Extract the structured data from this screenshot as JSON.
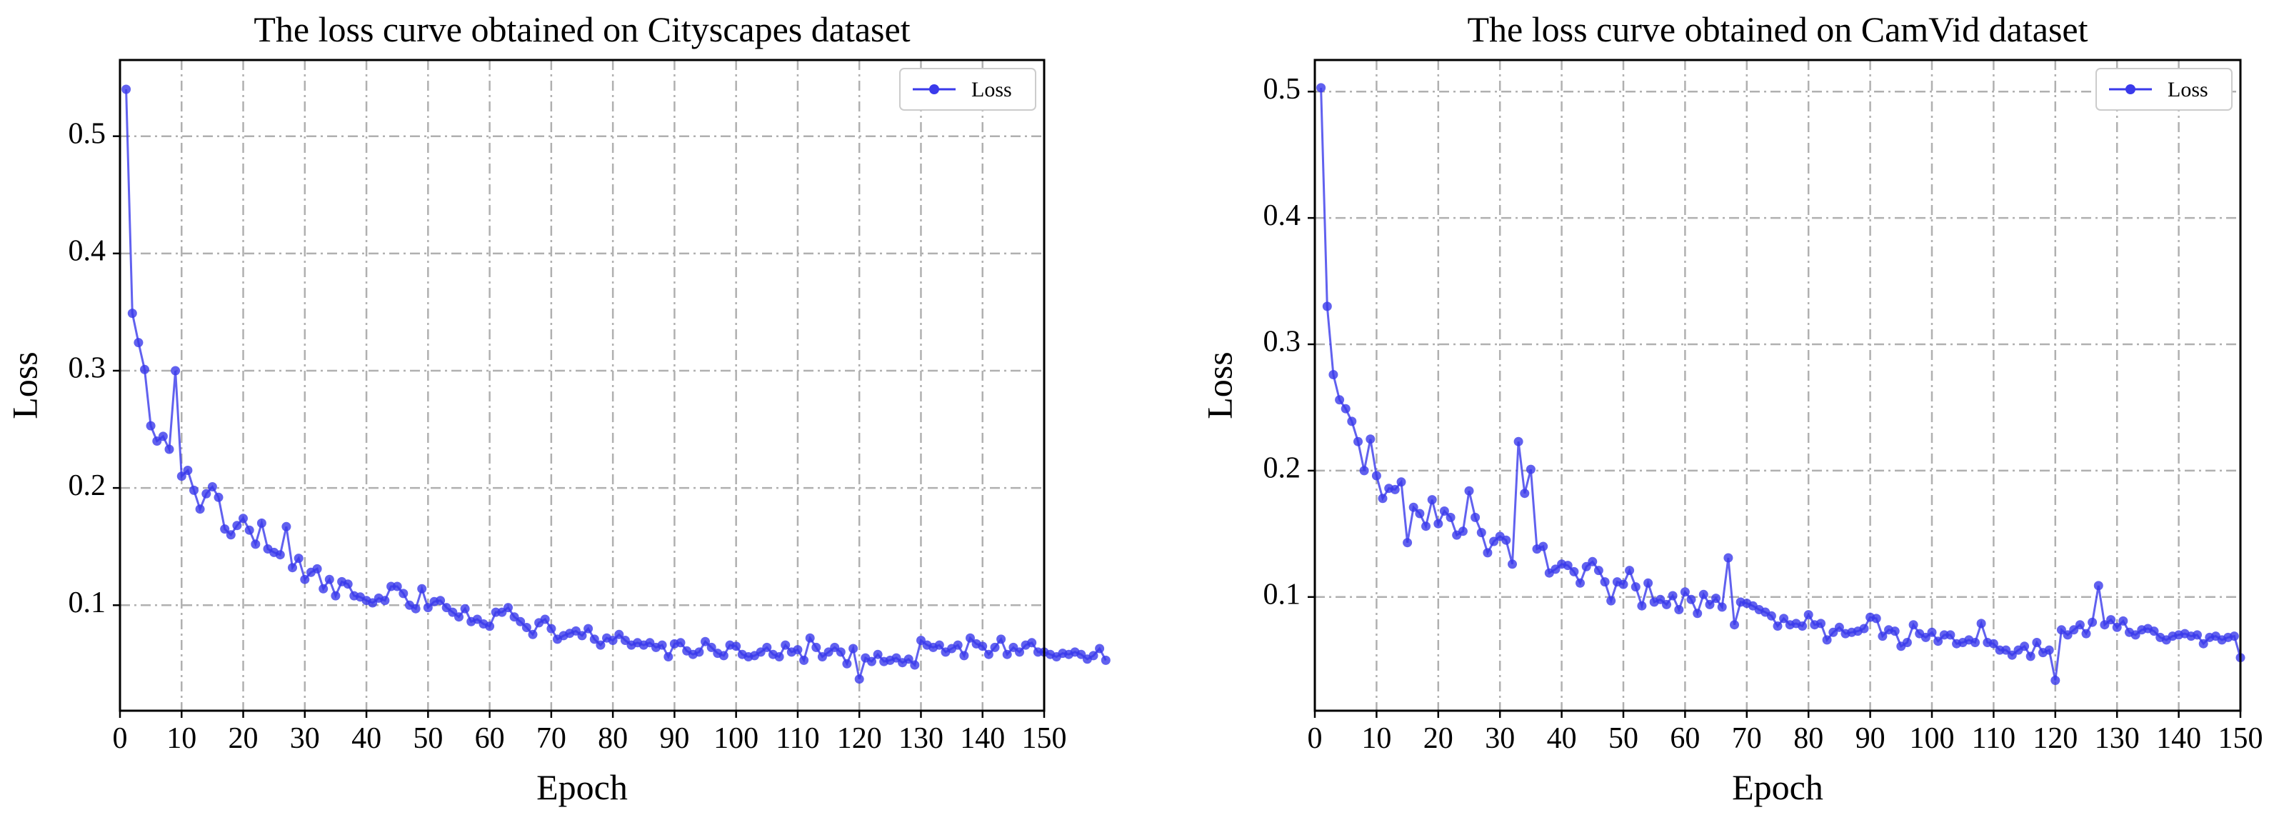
{
  "chart_data": [
    {
      "type": "line",
      "title": "The loss curve obtained on Cityscapes dataset",
      "xlabel": "Epoch",
      "ylabel": "Loss",
      "xlim": [
        0,
        150
      ],
      "ylim": [
        0.01,
        0.565
      ],
      "xticks": [
        0,
        10,
        20,
        30,
        40,
        50,
        60,
        70,
        80,
        90,
        100,
        110,
        120,
        130,
        140,
        150
      ],
      "xtick_labels": [
        "0",
        "10",
        "20",
        "30",
        "40",
        "50",
        "60",
        "70",
        "80",
        "90",
        "100",
        "110",
        "120",
        "130",
        "140",
        "150"
      ],
      "yticks": [
        0.1,
        0.2,
        0.3,
        0.4,
        0.5
      ],
      "ytick_labels": [
        "0.1",
        "0.2",
        "0.3",
        "0.4",
        "0.5"
      ],
      "grid": true,
      "legend_position": "top-right",
      "series": [
        {
          "name": "Loss",
          "color": "#3a3aeb",
          "x_start": 1,
          "values": [
            0.54,
            0.349,
            0.324,
            0.301,
            0.253,
            0.24,
            0.244,
            0.233,
            0.3,
            0.21,
            0.215,
            0.198,
            0.182,
            0.195,
            0.201,
            0.192,
            0.165,
            0.16,
            0.168,
            0.174,
            0.164,
            0.152,
            0.17,
            0.148,
            0.145,
            0.143,
            0.167,
            0.132,
            0.14,
            0.122,
            0.128,
            0.131,
            0.114,
            0.122,
            0.108,
            0.12,
            0.118,
            0.108,
            0.107,
            0.104,
            0.102,
            0.106,
            0.104,
            0.116,
            0.116,
            0.11,
            0.1,
            0.097,
            0.114,
            0.098,
            0.103,
            0.104,
            0.098,
            0.094,
            0.09,
            0.097,
            0.086,
            0.088,
            0.084,
            0.082,
            0.094,
            0.094,
            0.098,
            0.09,
            0.086,
            0.081,
            0.075,
            0.085,
            0.088,
            0.08,
            0.071,
            0.074,
            0.076,
            0.078,
            0.074,
            0.08,
            0.071,
            0.066,
            0.072,
            0.07,
            0.075,
            0.07,
            0.066,
            0.068,
            0.066,
            0.068,
            0.064,
            0.066,
            0.056,
            0.067,
            0.068,
            0.061,
            0.058,
            0.06,
            0.069,
            0.064,
            0.059,
            0.057,
            0.066,
            0.065,
            0.058,
            0.056,
            0.057,
            0.06,
            0.064,
            0.058,
            0.056,
            0.066,
            0.06,
            0.062,
            0.053,
            0.072,
            0.064,
            0.056,
            0.06,
            0.064,
            0.06,
            0.05,
            0.063,
            0.037,
            0.055,
            0.052,
            0.058,
            0.052,
            0.053,
            0.055,
            0.051,
            0.054,
            0.049,
            0.07,
            0.066,
            0.064,
            0.066,
            0.06,
            0.063,
            0.066,
            0.057,
            0.072,
            0.067,
            0.065,
            0.058,
            0.064,
            0.071,
            0.058,
            0.064,
            0.06,
            0.066,
            0.068,
            0.06,
            0.06,
            0.058,
            0.056,
            0.059,
            0.058,
            0.06,
            0.058,
            0.054,
            0.057,
            0.063,
            0.053
          ]
        }
      ]
    },
    {
      "type": "line",
      "title": "The loss curve obtained on CamVid dataset",
      "xlabel": "Epoch",
      "ylabel": "Loss",
      "xlim": [
        0,
        150
      ],
      "ylim": [
        0.01,
        0.525
      ],
      "xticks": [
        0,
        10,
        20,
        30,
        40,
        50,
        60,
        70,
        80,
        90,
        100,
        110,
        120,
        130,
        140,
        150
      ],
      "xtick_labels": [
        "0",
        "10",
        "20",
        "30",
        "40",
        "50",
        "60",
        "70",
        "80",
        "90",
        "100",
        "110",
        "120",
        "130",
        "140",
        "150"
      ],
      "yticks": [
        0.1,
        0.2,
        0.3,
        0.4,
        0.5
      ],
      "ytick_labels": [
        "0.1",
        "0.2",
        "0.3",
        "0.4",
        "0.5"
      ],
      "grid": true,
      "legend_position": "top-right",
      "series": [
        {
          "name": "Loss",
          "color": "#3a3aeb",
          "x_start": 1,
          "values": [
            0.503,
            0.33,
            0.276,
            0.256,
            0.249,
            0.239,
            0.223,
            0.2,
            0.225,
            0.196,
            0.178,
            0.186,
            0.185,
            0.191,
            0.143,
            0.171,
            0.166,
            0.156,
            0.177,
            0.158,
            0.168,
            0.163,
            0.149,
            0.152,
            0.184,
            0.163,
            0.151,
            0.135,
            0.144,
            0.148,
            0.145,
            0.126,
            0.223,
            0.182,
            0.201,
            0.138,
            0.14,
            0.119,
            0.122,
            0.126,
            0.125,
            0.12,
            0.111,
            0.124,
            0.128,
            0.121,
            0.112,
            0.097,
            0.112,
            0.11,
            0.121,
            0.108,
            0.093,
            0.111,
            0.096,
            0.098,
            0.094,
            0.101,
            0.09,
            0.104,
            0.098,
            0.087,
            0.102,
            0.094,
            0.099,
            0.092,
            0.131,
            0.078,
            0.096,
            0.095,
            0.093,
            0.09,
            0.088,
            0.085,
            0.077,
            0.083,
            0.078,
            0.079,
            0.077,
            0.086,
            0.078,
            0.079,
            0.066,
            0.072,
            0.076,
            0.071,
            0.072,
            0.073,
            0.075,
            0.084,
            0.083,
            0.069,
            0.074,
            0.073,
            0.061,
            0.064,
            0.078,
            0.071,
            0.068,
            0.072,
            0.065,
            0.07,
            0.07,
            0.063,
            0.064,
            0.066,
            0.064,
            0.079,
            0.064,
            0.063,
            0.058,
            0.058,
            0.054,
            0.058,
            0.061,
            0.053,
            0.064,
            0.056,
            0.058,
            0.034,
            0.074,
            0.07,
            0.074,
            0.078,
            0.071,
            0.08,
            0.109,
            0.078,
            0.082,
            0.076,
            0.081,
            0.072,
            0.07,
            0.074,
            0.075,
            0.073,
            0.068,
            0.066,
            0.069,
            0.07,
            0.071,
            0.069,
            0.07,
            0.063,
            0.068,
            0.069,
            0.066,
            0.068,
            0.069,
            0.052
          ]
        }
      ]
    }
  ]
}
